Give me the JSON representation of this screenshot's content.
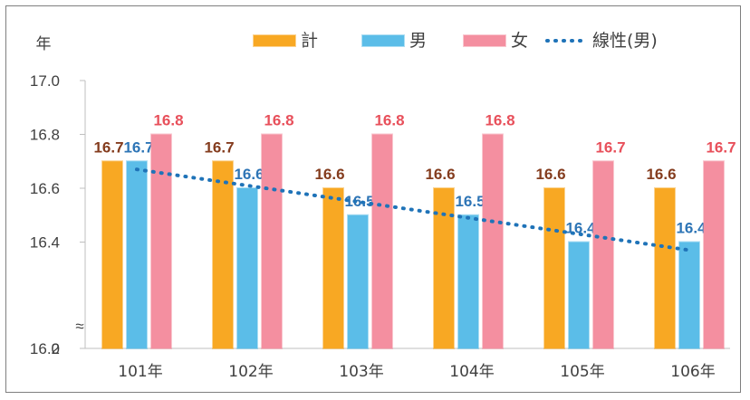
{
  "chart_data": {
    "type": "bar",
    "title": "",
    "y_unit_label": "年",
    "categories": [
      "101年",
      "102年",
      "103年",
      "104年",
      "105年",
      "106年"
    ],
    "series": [
      {
        "name": "計",
        "color": "#f8a823",
        "labelColor": "#843c1e",
        "values": [
          16.7,
          16.7,
          16.6,
          16.6,
          16.6,
          16.6
        ]
      },
      {
        "name": "男",
        "color": "#5bbde8",
        "labelColor": "#2e75b6",
        "values": [
          16.7,
          16.6,
          16.5,
          16.5,
          16.4,
          16.4
        ]
      },
      {
        "name": "女",
        "color": "#f48fa0",
        "labelColor": "#e8505b",
        "values": [
          16.8,
          16.8,
          16.8,
          16.8,
          16.7,
          16.7
        ]
      }
    ],
    "trendline": {
      "name": "線性(男)",
      "color": "#1f73b8",
      "style": "dotted",
      "start": 16.67,
      "end": 16.37
    },
    "y_ticks": [
      "17.0",
      "16.8",
      "16.6",
      "16.4",
      "16.2",
      "0"
    ],
    "y_axis_break": "≈",
    "ylim": [
      16.0,
      17.0
    ],
    "grid": false,
    "legend_position": "top"
  }
}
